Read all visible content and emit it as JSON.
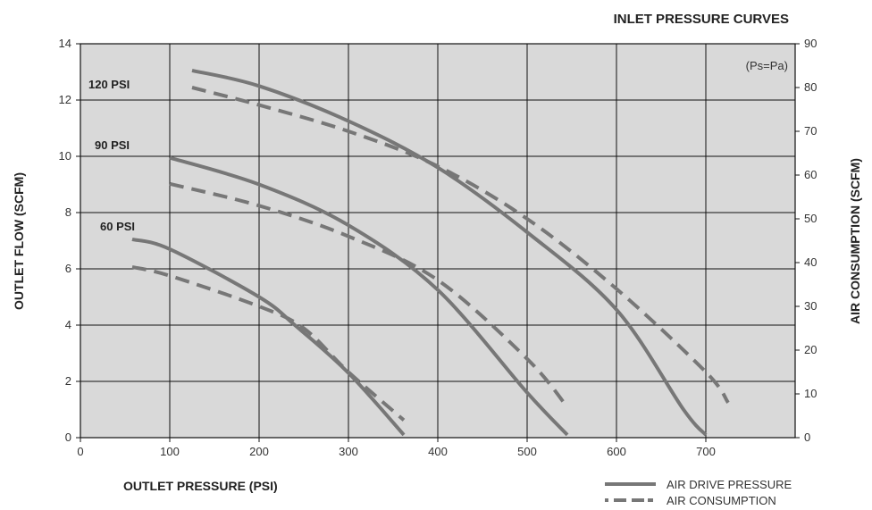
{
  "chart_data": {
    "type": "line",
    "title": "INLET PRESSURE CURVES",
    "xlabel": "OUTLET PRESSURE (PSI)",
    "ylabel": "OUTLET FLOW (SCFM)",
    "y2label": "AIR CONSUMPTION (SCFM)",
    "note": "(Ps=Pa)",
    "xlim": [
      0,
      800
    ],
    "ylim": [
      0,
      14
    ],
    "y2lim": [
      0,
      90
    ],
    "x_ticks": [
      0,
      100,
      200,
      300,
      400,
      500,
      600,
      700
    ],
    "y_ticks": [
      0,
      2,
      4,
      6,
      8,
      10,
      12,
      14
    ],
    "y2_ticks": [
      0,
      10,
      20,
      30,
      40,
      50,
      60,
      70,
      80,
      90
    ],
    "grid": true,
    "legend": {
      "placement": "bottom-right",
      "entries": [
        {
          "label": "AIR DRIVE PRESSURE",
          "style": "solid"
        },
        {
          "label": "AIR CONSUMPTION",
          "style": "dashed"
        }
      ]
    },
    "series_labels": [
      "120 PSI",
      "90 PSI",
      "60 PSI"
    ],
    "series": [
      {
        "group": "120 PSI",
        "kind": "air-drive-pressure",
        "axis": "left",
        "points": [
          [
            125,
            13.05
          ],
          [
            200,
            12.5
          ],
          [
            300,
            11.25
          ],
          [
            400,
            9.6
          ],
          [
            500,
            7.3
          ],
          [
            600,
            4.55
          ],
          [
            675,
            1.0
          ],
          [
            700,
            0.1
          ]
        ]
      },
      {
        "group": "120 PSI",
        "kind": "air-consumption",
        "axis": "right",
        "points": [
          [
            125,
            80
          ],
          [
            200,
            76
          ],
          [
            300,
            70
          ],
          [
            400,
            62
          ],
          [
            500,
            50
          ],
          [
            600,
            34
          ],
          [
            700,
            15
          ],
          [
            725,
            8
          ]
        ]
      },
      {
        "group": "90 PSI",
        "kind": "air-drive-pressure",
        "axis": "left",
        "points": [
          [
            100,
            9.95
          ],
          [
            200,
            9.0
          ],
          [
            300,
            7.55
          ],
          [
            400,
            5.25
          ],
          [
            500,
            1.6
          ],
          [
            545,
            0.1
          ]
        ]
      },
      {
        "group": "90 PSI",
        "kind": "air-consumption",
        "axis": "right",
        "points": [
          [
            100,
            58
          ],
          [
            200,
            53
          ],
          [
            300,
            46
          ],
          [
            400,
            36
          ],
          [
            500,
            18
          ],
          [
            545,
            7
          ]
        ]
      },
      {
        "group": "60 PSI",
        "kind": "air-drive-pressure",
        "axis": "left",
        "points": [
          [
            58,
            7.05
          ],
          [
            100,
            6.7
          ],
          [
            200,
            5.0
          ],
          [
            240,
            4.0
          ],
          [
            300,
            2.3
          ],
          [
            362,
            0.1
          ]
        ]
      },
      {
        "group": "60 PSI",
        "kind": "air-consumption",
        "axis": "right",
        "points": [
          [
            58,
            39
          ],
          [
            100,
            37
          ],
          [
            200,
            30
          ],
          [
            250,
            25
          ],
          [
            300,
            15
          ],
          [
            362,
            4
          ]
        ]
      }
    ],
    "colors": {
      "plot_background": "#d9d9d9",
      "line": "#777777",
      "grid": "#111111"
    }
  }
}
